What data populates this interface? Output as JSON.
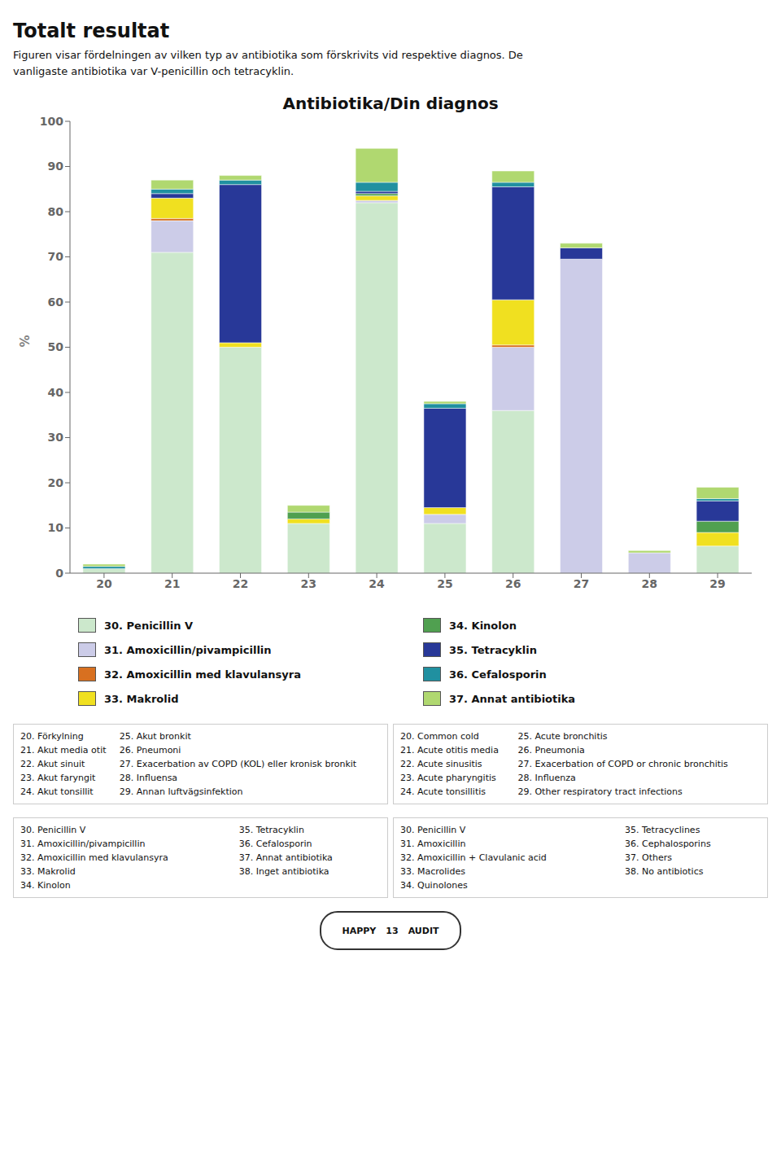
{
  "chart_data": {
    "type": "bar",
    "stacked": true,
    "title": "Antibiotika/Din diagnos",
    "ylabel": "%",
    "categories": [
      "20",
      "21",
      "22",
      "23",
      "24",
      "25",
      "26",
      "27",
      "28",
      "29"
    ],
    "series": [
      {
        "name": "30. Penicillin V",
        "color": "#cce8cc",
        "values": [
          1.0,
          71.0,
          50.0,
          11.0,
          82.0,
          11.0,
          36.0,
          0.0,
          0.0,
          6.0
        ]
      },
      {
        "name": "31. Amoxicillin/pivampicillin",
        "color": "#cccce8",
        "values": [
          0.0,
          7.0,
          0.0,
          0.0,
          0.5,
          2.0,
          14.0,
          69.5,
          4.5,
          0.0
        ]
      },
      {
        "name": "32. Amoxicillin med klavulansyra",
        "color": "#d87020",
        "values": [
          0.0,
          0.5,
          0.0,
          0.0,
          0.0,
          0.0,
          0.5,
          0.0,
          0.0,
          0.0
        ]
      },
      {
        "name": "33. Makrolid",
        "color": "#f0e020",
        "values": [
          0.0,
          4.5,
          1.0,
          1.0,
          1.0,
          1.5,
          10.0,
          0.0,
          0.0,
          3.0
        ]
      },
      {
        "name": "34. Kinolon",
        "color": "#50a050",
        "values": [
          0.0,
          0.0,
          0.0,
          1.5,
          0.5,
          0.0,
          0.0,
          0.0,
          0.0,
          2.5
        ]
      },
      {
        "name": "35. Tetracyklin",
        "color": "#283898",
        "values": [
          0.0,
          1.0,
          35.0,
          0.0,
          0.5,
          22.0,
          25.0,
          2.5,
          0.0,
          4.5
        ]
      },
      {
        "name": "36. Cefalosporin",
        "color": "#2090a0",
        "values": [
          0.5,
          1.0,
          1.0,
          0.0,
          2.0,
          1.0,
          1.0,
          0.0,
          0.0,
          0.5
        ]
      },
      {
        "name": "37. Annat antibiotika",
        "color": "#b0d870",
        "values": [
          0.5,
          2.0,
          1.0,
          1.5,
          7.5,
          0.5,
          2.5,
          1.0,
          0.5,
          2.5
        ]
      }
    ],
    "ylim": [
      0,
      100
    ],
    "yticks": [
      0,
      10,
      20,
      30,
      40,
      50,
      60,
      70,
      80,
      90,
      100
    ],
    "grid": false,
    "annotations": [
      "Totalt resultat",
      "Figuren visar fördelningen av vilken typ av antibiotika som förskrivits vid respektive diagnos. De\nvanligaste antibiotika var V-penicillin och tetracyklin.",
      [
        [
          "20. Förkylning",
          "21. Akut media otit",
          "22. Akut sinuit",
          "23. Akut faryngit",
          "24. Akut tonsillit"
        ],
        [
          "25. Akut bronkit",
          "26. Pneumoni",
          "27. Exacerbation av COPD (KOL) eller kronisk bronkit",
          "28. Influensa",
          "29. Annan luftvägsinfektion"
        ],
        [
          "20. Common cold",
          "21. Acute otitis media",
          "22. Acute sinusitis",
          "23. Acute pharyngitis",
          "24. Acute tonsillitis"
        ],
        [
          "25. Acute bronchitis",
          "26. Pneumonia",
          "27. Exacerbation of COPD or chronic bronchitis",
          "28. Influenza",
          "29. Other respiratory tract infections"
        ]
      ],
      [
        [
          "30. Penicillin V",
          "31. Amoxicillin/pivampicillin",
          "32. Amoxicillin med klavulansyra",
          "33. Makrolid",
          "34. Kinolon"
        ],
        [
          "35. Tetracyklin",
          "36. Cefalosporin",
          "37. Annat antibiotika",
          "38. Inget antibiotika"
        ],
        [
          "30. Penicillin V",
          "31. Amoxicillin",
          "32. Amoxicillin + Clavulanic acid",
          "33. Macrolides",
          "34. Quinolones"
        ],
        [
          "35. Tetracyclines",
          "36. Cephalosporins",
          "37. Others",
          "38. No antibiotics"
        ]
      ],
      "HAPPY",
      "13",
      "AUDIT"
    ]
  }
}
